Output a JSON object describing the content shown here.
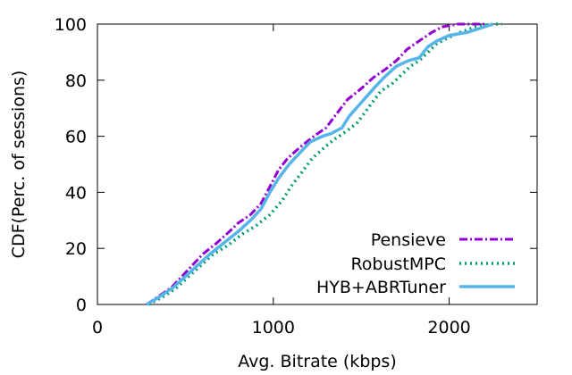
{
  "chart_data": {
    "type": "line",
    "xlabel": "Avg. Bitrate (kbps)",
    "ylabel": "CDF(Perc. of sessions)",
    "xlim": [
      0,
      2500
    ],
    "ylim": [
      0,
      100
    ],
    "xticks": [
      0,
      1000,
      2000
    ],
    "yticks": [
      0,
      20,
      40,
      60,
      80,
      100
    ],
    "grid": false,
    "legend_position": "bottom-right",
    "series": [
      {
        "name": "Pensieve",
        "color": "#9400D3",
        "style": "dash-dot",
        "x": [
          280,
          350,
          420,
          480,
          540,
          600,
          680,
          750,
          800,
          870,
          930,
          980,
          1030,
          1080,
          1150,
          1230,
          1300,
          1360,
          1420,
          1500,
          1570,
          1640,
          1700,
          1760,
          1830,
          1900,
          1960,
          2050,
          2150,
          2200
        ],
        "y": [
          0,
          3,
          6,
          10,
          14,
          18,
          22,
          26,
          29,
          32,
          36,
          42,
          48,
          52,
          56,
          60,
          63,
          68,
          73,
          77,
          81,
          84,
          87,
          91,
          94,
          97,
          99,
          100,
          100,
          100
        ]
      },
      {
        "name": "RobustMPC",
        "color": "#009E73",
        "style": "dotted",
        "x": [
          290,
          380,
          450,
          520,
          590,
          660,
          740,
          820,
          900,
          980,
          1050,
          1100,
          1160,
          1220,
          1290,
          1350,
          1420,
          1480,
          1550,
          1610,
          1680,
          1730,
          1780,
          1830,
          1880,
          1930,
          1990,
          2060,
          2150,
          2250,
          2300
        ],
        "y": [
          0,
          3,
          6,
          10,
          14,
          18,
          21,
          25,
          28,
          32,
          37,
          42,
          47,
          52,
          56,
          59,
          62,
          65,
          71,
          76,
          79,
          82,
          85,
          87,
          90,
          93,
          95,
          97,
          99,
          100,
          100
        ]
      },
      {
        "name": "HYB+ABRTuner",
        "color": "#56B4E9",
        "style": "solid",
        "x": [
          280,
          360,
          430,
          500,
          570,
          640,
          720,
          800,
          870,
          930,
          980,
          1030,
          1090,
          1150,
          1210,
          1280,
          1330,
          1390,
          1430,
          1500,
          1570,
          1630,
          1700,
          1770,
          1830,
          1880,
          1930,
          2000,
          2100,
          2200,
          2250
        ],
        "y": [
          0,
          3,
          6,
          10,
          14,
          18,
          22,
          26,
          30,
          34,
          40,
          45,
          50,
          54,
          58,
          60,
          61,
          63,
          67,
          72,
          77,
          81,
          85,
          87,
          88,
          92,
          94,
          96,
          97,
          99,
          100
        ]
      }
    ]
  }
}
